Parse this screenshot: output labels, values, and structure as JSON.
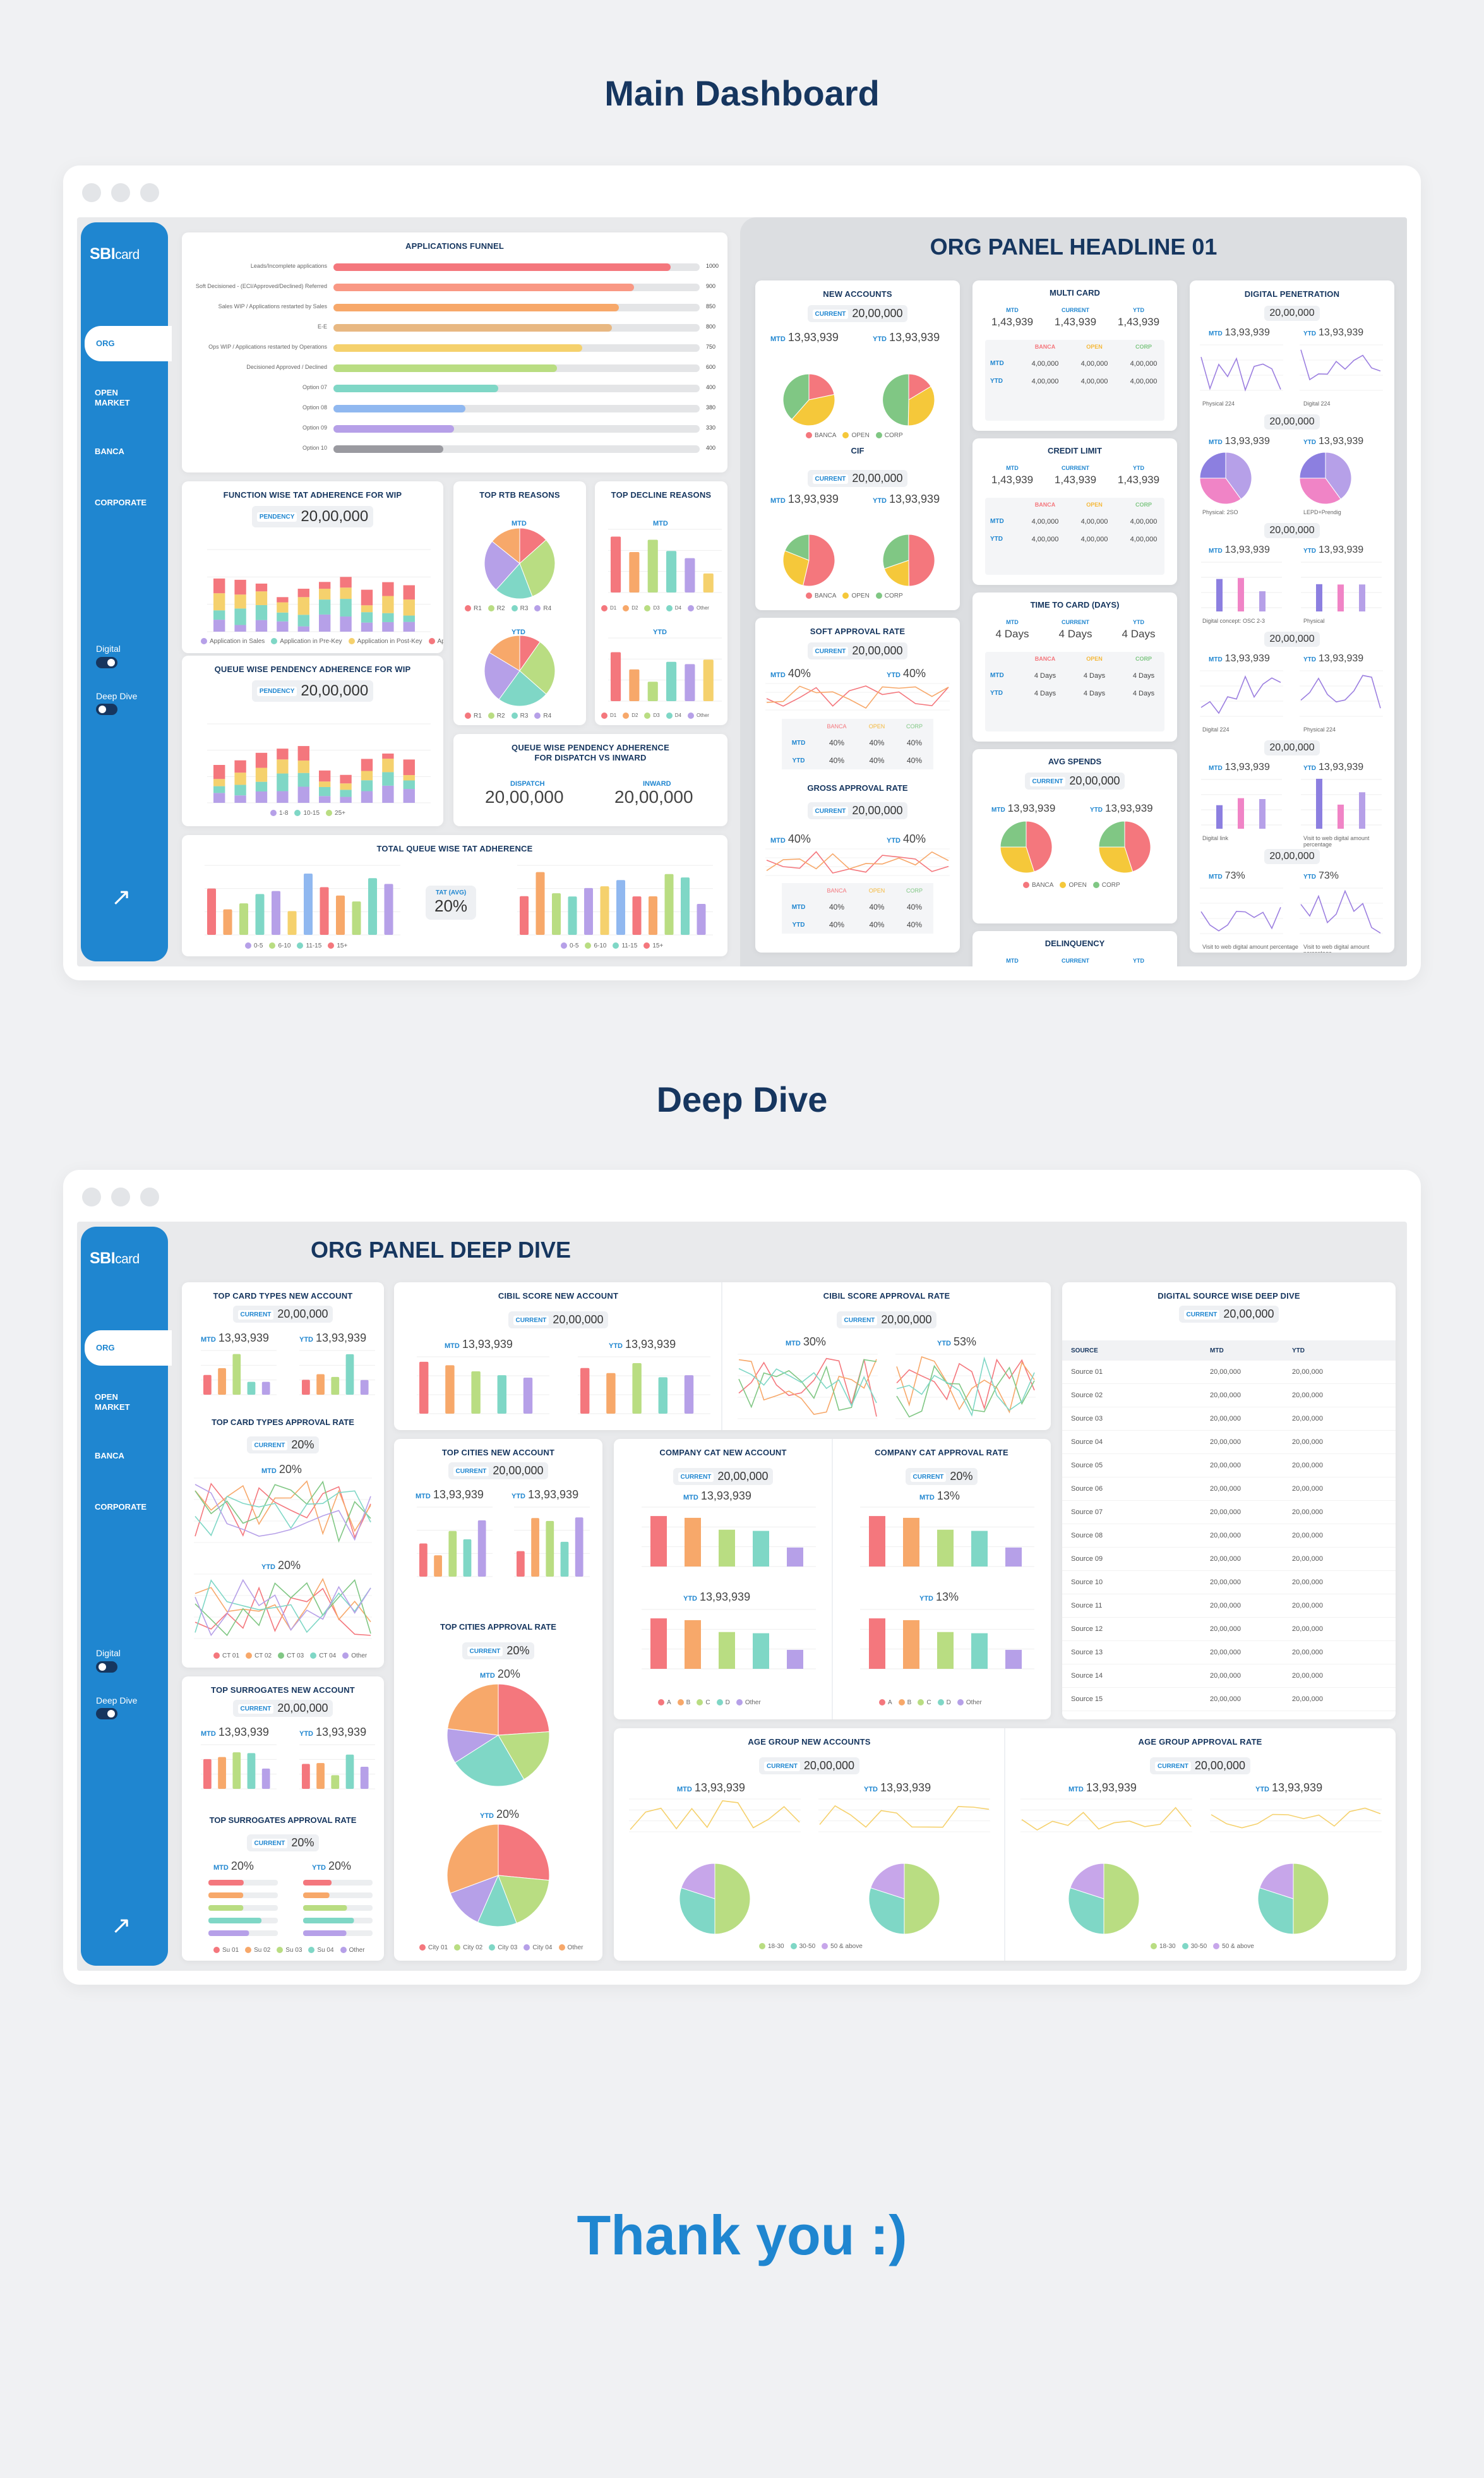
{
  "sections": {
    "main": "Main Dashboard",
    "deep": "Deep Dive",
    "thanks": "Thank you :)"
  },
  "sidebar": {
    "logo_main": "SBI",
    "logo_sub": "card",
    "items": [
      "ORG",
      "OPEN\nMARKET",
      "BANCA",
      "CORPORATE"
    ],
    "toggle_digital": "Digital",
    "toggle_deep": "Deep Dive"
  },
  "common": {
    "current": "CURRENT",
    "current_value": "20,00,000",
    "mtd": "MTD",
    "ytd": "YTD",
    "mtd_value": "13,93,939",
    "ytd_value": "13,93,939",
    "pendency": "PENDENCY",
    "pct": "20%",
    "pct40": "40%",
    "mtd_card_value": "1,43,939",
    "table_value": "4,00,000"
  },
  "main": {
    "headline": "ORG PANEL HEADLINE 01",
    "funnel": {
      "title": "APPLICATIONS FUNNEL",
      "rows": [
        {
          "label": "Leads/Incomplete applications",
          "value": "1000",
          "pct": 0.92,
          "color": "#f4777d"
        },
        {
          "label": "Soft Decisioned - (ECI/Approved/Declined) Referred",
          "value": "900",
          "pct": 0.82,
          "color": "#f99884"
        },
        {
          "label": "Sales WIP / Applications restarted by Sales",
          "value": "850",
          "pct": 0.78,
          "color": "#f7a86a"
        },
        {
          "label": "E-E",
          "value": "800",
          "pct": 0.76,
          "color": "#e8b882"
        },
        {
          "label": "Ops WIP / Applications restarted by Operations",
          "value": "750",
          "pct": 0.68,
          "color": "#f5d16d"
        },
        {
          "label": "Decisioned Approved / Declined",
          "value": "600",
          "pct": 0.61,
          "color": "#b9dd82"
        },
        {
          "label": "Option 07",
          "value": "400",
          "pct": 0.45,
          "color": "#7fd7c6"
        },
        {
          "label": "Option 08",
          "value": "380",
          "pct": 0.36,
          "color": "#90b8f0"
        },
        {
          "label": "Option 09",
          "value": "330",
          "pct": 0.33,
          "color": "#b6a0e8"
        },
        {
          "label": "Option 10",
          "value": "400",
          "pct": 0.3,
          "color": "#9a9aa0"
        }
      ]
    },
    "ftat": {
      "title": "FUNCTION WISE TAT ADHERENCE FOR WIP",
      "legend": [
        "Application in Sales",
        "Application in Pre-Key",
        "Application in Post-Key",
        "Application in Risk/PMM"
      ]
    },
    "qwp": {
      "title": "QUEUE WISE  PENDENCY ADHERENCE FOR WIP",
      "legend": [
        "1-8",
        "10-15",
        "25+"
      ]
    },
    "rtb": {
      "title": "TOP RTB REASONS",
      "legend": [
        "R1",
        "R2",
        "R3",
        "R4"
      ]
    },
    "decline": {
      "title": "TOP DECLINE REASONS",
      "legend": [
        "D1",
        "D2",
        "D3",
        "D4",
        "D5",
        "Other"
      ]
    },
    "dispatch": {
      "title": "QUEUE WISE PENDENCY ADHERENCE\nFOR DISPATCH VS INWARD",
      "dispatch_label": "DISPATCH",
      "inward_label": "INWARD",
      "dispatch_value": "20,00,000",
      "inward_value": "20,00,000"
    },
    "tqtat": {
      "title": "TOTAL QUEUE WISE TAT ADHERENCE",
      "tat_label": "TAT (AVG)",
      "tat_value": "20%",
      "legend": [
        "0-5",
        "6-10",
        "11-15",
        "15+"
      ]
    },
    "new_accounts": {
      "title": "NEW ACCOUNTS",
      "cif": "CIF",
      "legend": [
        "BANCA",
        "OPEN",
        "CORP"
      ]
    },
    "soft": {
      "title": "SOFT APPROVAL RATE",
      "gross": "GROSS APPROVAL RATE"
    },
    "multi": {
      "title": "MULTI CARD",
      "credit": "CREDIT LIMIT",
      "ttc": "TIME TO CARD (DAYS)",
      "avg": "AVG SPENDS",
      "delinq": "DELINQUENCY",
      "ttc_value": "4 Days",
      "cols": [
        "BANCA",
        "OPEN",
        "CORP"
      ],
      "hdr": [
        "MTD",
        "CURRENT",
        "YTD"
      ]
    },
    "digital": {
      "title": "DIGITAL PENETRATION",
      "value": "20,00,000",
      "pct": "73%",
      "legends": [
        "Physical 224",
        "Digital 224",
        "Physical: 2SO",
        "LEPD+Prendig",
        "Digital concept: OSC 2-3",
        "Physical",
        "Digital 224",
        "Physical 224",
        "Digital link",
        "Visit to web digital amount percentage"
      ]
    }
  },
  "deep": {
    "headline": "ORG PANEL DEEP DIVE",
    "card_types": {
      "title": "TOP CARD TYPES NEW ACCOUNT",
      "approval": "TOP CARD TYPES APPROVAL RATE",
      "legend": [
        "CT 01",
        "CT 02",
        "CT 03",
        "CT 04",
        "Other"
      ]
    },
    "surrogates": {
      "title": "TOP SURROGATES NEW ACCOUNT",
      "approval": "TOP SURROGATES APPROVAL RATE",
      "legend": [
        "Su 01",
        "Su 02",
        "Su 03",
        "Su 04",
        "Other"
      ]
    },
    "cibil": {
      "title": "CIBIL SCORE NEW ACCOUNT",
      "approval": "CIBIL SCORE APPROVAL RATE",
      "mtd_pct": "30%",
      "ytd_pct": "53%"
    },
    "cities": {
      "title": "TOP CITIES NEW ACCOUNT",
      "approval": "TOP CITIES APPROVAL RATE",
      "legend": [
        "City 01",
        "City 02",
        "City 03",
        "City 04",
        "Other"
      ]
    },
    "company": {
      "title": "COMPANY CAT NEW ACCOUNT",
      "approval": "COMPANY CAT APPROVAL RATE",
      "mtd_pct": "13%",
      "legend": [
        "A",
        "B",
        "C",
        "D",
        "Other"
      ]
    },
    "age": {
      "title": "AGE GROUP NEW ACCOUNTS",
      "approval": "AGE GROUP APPROVAL RATE",
      "legend": [
        "18-30",
        "30-50",
        "50 & above"
      ]
    },
    "digital_source": {
      "title": "DIGITAL SOURCE WISE DEEP DIVE",
      "headers": [
        "SOURCE",
        "MTD",
        "YTD"
      ],
      "rows": [
        "Source 01",
        "Source 02",
        "Source 03",
        "Source 04",
        "Source 05",
        "Source 06",
        "Source 07",
        "Source 08",
        "Source 09",
        "Source 10",
        "Source 11",
        "Source 12",
        "Source 13",
        "Source 14",
        "Source 15"
      ],
      "value": "20,00,000"
    }
  },
  "chart_data": [
    {
      "type": "bar",
      "title": "APPLICATIONS FUNNEL",
      "categories": [
        "Leads/Incomplete applications",
        "Soft Decisioned",
        "Sales WIP",
        "E-E",
        "Ops WIP",
        "Decisioned",
        "Option 07",
        "Option 08",
        "Option 09",
        "Option 10"
      ],
      "values": [
        1000,
        900,
        850,
        800,
        750,
        600,
        400,
        380,
        330,
        400
      ]
    },
    {
      "type": "pie",
      "title": "NEW ACCOUNTS",
      "categories": [
        "BANCA",
        "OPEN",
        "CORP"
      ],
      "values": [
        45,
        30,
        25
      ]
    },
    {
      "type": "bar",
      "title": "COMPANY CAT NEW ACCOUNT",
      "categories": [
        "A",
        "B",
        "C",
        "D",
        "Other"
      ],
      "values": [
        85,
        80,
        60,
        58,
        30
      ]
    }
  ]
}
